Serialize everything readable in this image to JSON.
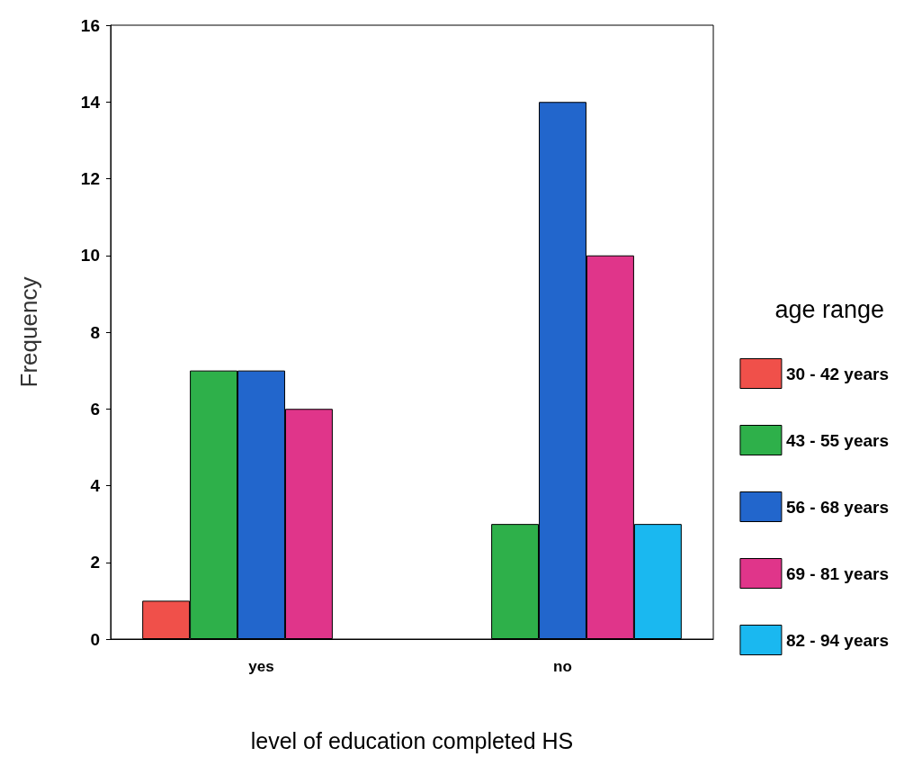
{
  "chart_data": {
    "type": "bar",
    "xlabel": "level of education completed HS",
    "ylabel": "Frequency",
    "legend_title": "age range",
    "categories": [
      "yes",
      "no"
    ],
    "series": [
      {
        "name": "30 - 42 years",
        "color": "#f0504a",
        "values": [
          1,
          null
        ]
      },
      {
        "name": "43 - 55 years",
        "color": "#2eb04a",
        "values": [
          7,
          3
        ]
      },
      {
        "name": "56 - 68 years",
        "color": "#2266cc",
        "values": [
          7,
          14
        ]
      },
      {
        "name": "69 - 81 years",
        "color": "#e0358a",
        "values": [
          6,
          10
        ]
      },
      {
        "name": "82 - 94 years",
        "color": "#1ab8f0",
        "values": [
          null,
          3
        ]
      }
    ],
    "ylim": [
      0,
      16
    ],
    "yticks": [
      0,
      2,
      4,
      6,
      8,
      10,
      12,
      14,
      16
    ],
    "grid": false,
    "legend": "right"
  }
}
